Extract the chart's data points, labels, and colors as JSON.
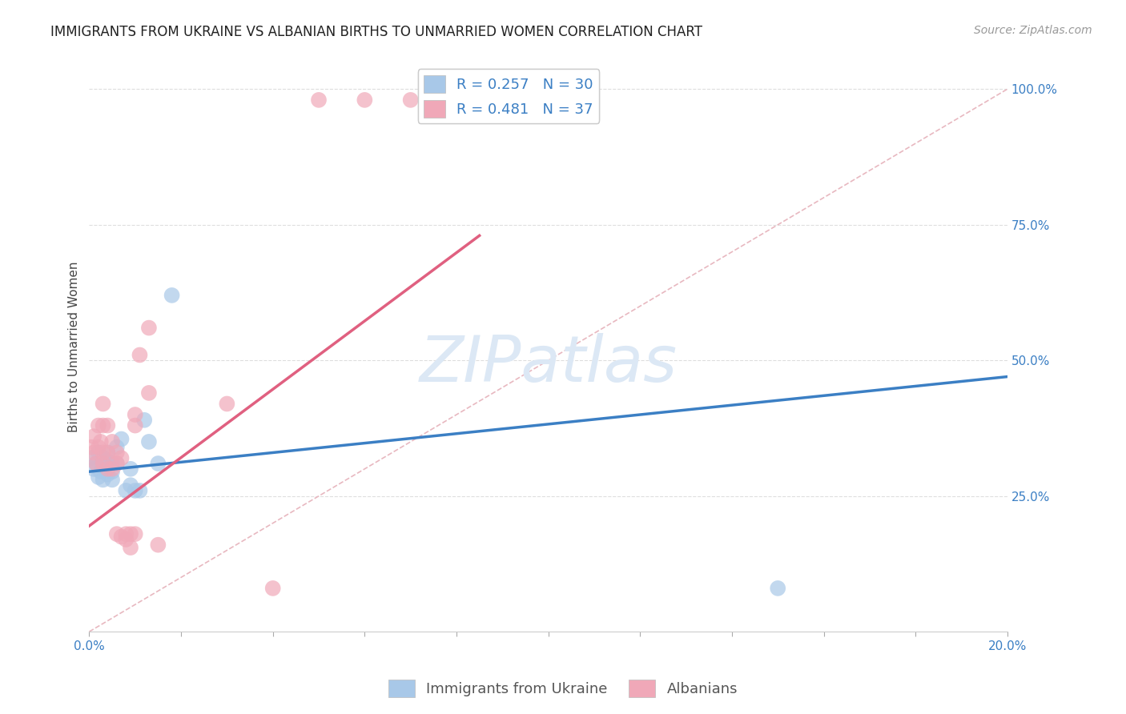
{
  "title": "IMMIGRANTS FROM UKRAINE VS ALBANIAN BIRTHS TO UNMARRIED WOMEN CORRELATION CHART",
  "source": "Source: ZipAtlas.com",
  "ylabel": "Births to Unmarried Women",
  "xlim": [
    0.0,
    0.2
  ],
  "ylim": [
    0.0,
    1.05
  ],
  "yticks": [
    0.25,
    0.5,
    0.75,
    1.0
  ],
  "ytick_labels": [
    "25.0%",
    "50.0%",
    "75.0%",
    "100.0%"
  ],
  "xtick_count": 10,
  "xtick_left_label": "0.0%",
  "xtick_right_label": "20.0%",
  "legend_labels": [
    "R = 0.257   N = 30",
    "R = 0.481   N = 37"
  ],
  "legend_bottom_labels": [
    "Immigrants from Ukraine",
    "Albanians"
  ],
  "blue_color": "#a8c8e8",
  "pink_color": "#f0a8b8",
  "blue_line_color": "#3b7fc4",
  "pink_line_color": "#e06080",
  "diagonal_color": "#e8b8c0",
  "watermark_text": "ZIPatlas",
  "watermark_color": "#dce8f5",
  "background_color": "#ffffff",
  "grid_color": "#dedede",
  "title_color": "#222222",
  "tick_color": "#3b7fc4",
  "ylabel_color": "#444444",
  "source_color": "#999999",
  "legend_text_color": "#3b7fc4",
  "ukraine_x": [
    0.0005,
    0.001,
    0.0015,
    0.002,
    0.002,
    0.0025,
    0.003,
    0.003,
    0.003,
    0.003,
    0.004,
    0.004,
    0.004,
    0.004,
    0.005,
    0.005,
    0.005,
    0.006,
    0.006,
    0.007,
    0.008,
    0.009,
    0.009,
    0.01,
    0.011,
    0.012,
    0.013,
    0.015,
    0.018,
    0.15
  ],
  "ukraine_y": [
    0.32,
    0.3,
    0.31,
    0.285,
    0.33,
    0.295,
    0.3,
    0.315,
    0.28,
    0.32,
    0.3,
    0.29,
    0.315,
    0.33,
    0.28,
    0.295,
    0.31,
    0.31,
    0.34,
    0.355,
    0.26,
    0.27,
    0.3,
    0.26,
    0.26,
    0.39,
    0.35,
    0.31,
    0.62,
    0.08
  ],
  "albanian_x": [
    0.0005,
    0.001,
    0.001,
    0.0015,
    0.002,
    0.002,
    0.0025,
    0.003,
    0.003,
    0.003,
    0.003,
    0.004,
    0.004,
    0.004,
    0.005,
    0.005,
    0.006,
    0.006,
    0.006,
    0.007,
    0.007,
    0.008,
    0.008,
    0.009,
    0.009,
    0.01,
    0.01,
    0.01,
    0.011,
    0.013,
    0.013,
    0.015,
    0.03,
    0.04,
    0.05,
    0.06,
    0.07
  ],
  "albanian_y": [
    0.34,
    0.33,
    0.36,
    0.31,
    0.34,
    0.38,
    0.35,
    0.31,
    0.33,
    0.38,
    0.42,
    0.3,
    0.38,
    0.33,
    0.3,
    0.35,
    0.18,
    0.31,
    0.33,
    0.175,
    0.32,
    0.18,
    0.17,
    0.18,
    0.155,
    0.18,
    0.38,
    0.4,
    0.51,
    0.44,
    0.56,
    0.16,
    0.42,
    0.08,
    0.98,
    0.98,
    0.98
  ],
  "blue_line_x0": 0.0,
  "blue_line_y0": 0.295,
  "blue_line_x1": 0.2,
  "blue_line_y1": 0.47,
  "pink_line_x0": 0.0,
  "pink_line_y0": 0.195,
  "pink_line_x1": 0.085,
  "pink_line_y1": 0.73,
  "title_fontsize": 12,
  "axis_label_fontsize": 11,
  "tick_fontsize": 11,
  "legend_fontsize": 13,
  "watermark_fontsize": 58
}
